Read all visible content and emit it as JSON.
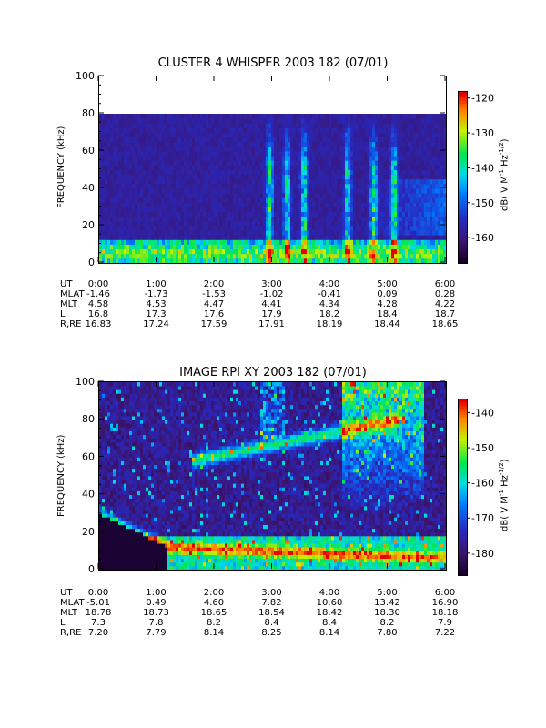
{
  "chart_data": [
    {
      "type": "heatmap",
      "title": "CLUSTER 4 WHISPER 2003 182 (07/01)",
      "ylabel": "FREQUENCY (kHz)",
      "ylim": [
        0,
        100
      ],
      "yticks": [
        0,
        20,
        40,
        60,
        80,
        100
      ],
      "xlim_hours": [
        0,
        6
      ],
      "data_max_freq": 80,
      "colorbar": {
        "label": "dB( V M",
        "label_sup1": "-1",
        "label_mid": " Hz",
        "label_sup2": "-1/2",
        "label_end": ")",
        "range": [
          -167,
          -118
        ],
        "ticks": [
          -120,
          -130,
          -140,
          -150,
          -160
        ]
      },
      "features": [
        {
          "name": "low-frequency band",
          "freq_range_khz": [
            2,
            12
          ],
          "time_range_hours": [
            0,
            6
          ]
        },
        {
          "name": "vertical emissions",
          "times_hours": [
            2.95,
            3.25,
            3.55,
            4.3,
            4.75,
            5.1
          ]
        },
        {
          "name": "diffuse upper band",
          "freq_range_khz": [
            18,
            40
          ],
          "time_range_hours": [
            4.5,
            6
          ]
        }
      ],
      "ephemeris": {
        "labels": [
          "UT",
          "MLAT",
          "MLT",
          "L",
          "R,RE"
        ],
        "times": [
          "0:00",
          "1:00",
          "2:00",
          "3:00",
          "4:00",
          "5:00",
          "6:00"
        ],
        "MLAT": [
          "-1.46",
          "-1.73",
          "-1.53",
          "-1.02",
          "-0.41",
          "0.09",
          "0.28"
        ],
        "MLT": [
          "4.58",
          "4.53",
          "4.47",
          "4.41",
          "4.34",
          "4.28",
          "4.22"
        ],
        "L": [
          "16.8",
          "17.3",
          "17.6",
          "17.9",
          "18.2",
          "18.4",
          "18.7"
        ],
        "R_RE": [
          "16.83",
          "17.24",
          "17.59",
          "17.91",
          "18.19",
          "18.44",
          "18.65"
        ]
      }
    },
    {
      "type": "heatmap",
      "title": "IMAGE RPI XY 2003 182 (07/01)",
      "ylabel": "FREQUENCY (kHz)",
      "ylim": [
        0,
        100
      ],
      "yticks": [
        0,
        20,
        40,
        60,
        80,
        100
      ],
      "xlim_hours": [
        0,
        6
      ],
      "colorbar": {
        "label": "dB( V M",
        "label_sup1": "-1",
        "label_mid": " Hz",
        "label_sup2": "-1/2",
        "label_end": ")",
        "range": [
          -186,
          -136
        ],
        "ticks": [
          -140,
          -150,
          -160,
          -170,
          -180
        ]
      },
      "features": [
        {
          "name": "plasma cutoff",
          "freq_khz_start": 30,
          "freq_khz_end": 12,
          "time_range_hours": [
            0,
            1.2
          ]
        },
        {
          "name": "diagonal emission",
          "freq_khz_start": 58,
          "freq_khz_end": 80,
          "time_range_hours": [
            1.6,
            5.2
          ]
        },
        {
          "name": "intense emission",
          "freq_range_khz": [
            60,
            100
          ],
          "time_range_hours": [
            4.2,
            5.6
          ]
        }
      ],
      "ephemeris": {
        "labels": [
          "UT",
          "MLAT",
          "MLT",
          "L",
          "R,RE"
        ],
        "times": [
          "0:00",
          "1:00",
          "2:00",
          "3:00",
          "4:00",
          "5:00",
          "6:00"
        ],
        "MLAT": [
          "-5.01",
          "0.49",
          "4.60",
          "7.82",
          "10.60",
          "13.42",
          "16.90"
        ],
        "MLT": [
          "18.78",
          "18.73",
          "18.65",
          "18.54",
          "18.42",
          "18.30",
          "18.18"
        ],
        "L": [
          "7.3",
          "7.8",
          "8.2",
          "8.4",
          "8.4",
          "8.2",
          "7.9"
        ],
        "R_RE": [
          "7.20",
          "7.79",
          "8.14",
          "8.25",
          "8.14",
          "7.80",
          "7.22"
        ]
      }
    }
  ]
}
